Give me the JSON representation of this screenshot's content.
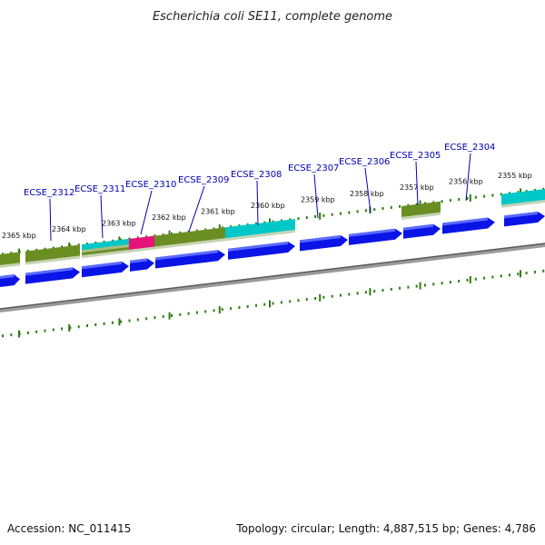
{
  "title": "Escherichia coli SE11, complete genome",
  "footer": {
    "accession": "Accession: NC_011415",
    "summary": "Topology: circular; Length: 4,887,515 bp; Genes: 4,786"
  },
  "colors": {
    "backbone": "#707070",
    "tick": "#2d7d12",
    "cds": "#0a14e6",
    "olive": "#6b8e23",
    "cyan": "#00c8c8",
    "pink": "#e6147a",
    "label": "#0000b0"
  },
  "scale_labels": [
    "2365 kbp",
    "2364 kbp",
    "2363 kbp",
    "2362 kbp",
    "2361 kbp",
    "2360 kbp",
    "2359 kbp",
    "2358 kbp",
    "2357 kbp",
    "2356 kbp",
    "2355 kbp"
  ],
  "gene_labels": [
    "ECSE_2312",
    "ECSE_2311",
    "ECSE_2310",
    "ECSE_2309",
    "ECSE_2308",
    "ECSE_2307",
    "ECSE_2306",
    "ECSE_2305",
    "ECSE_2304"
  ]
}
